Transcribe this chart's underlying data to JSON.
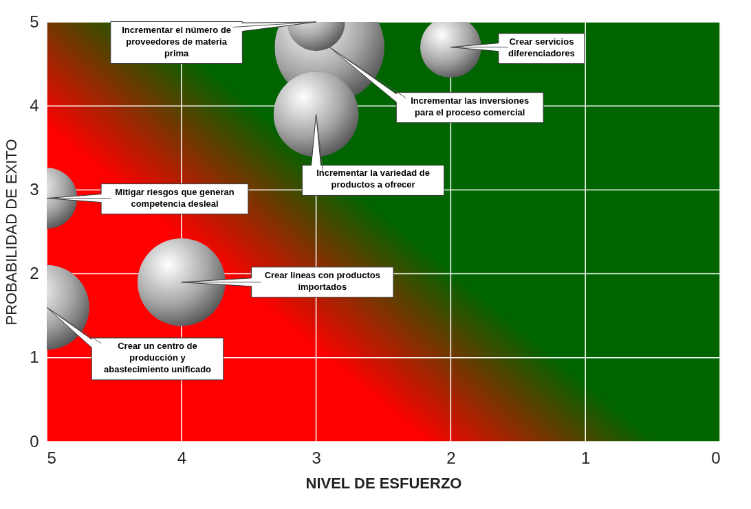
{
  "chart_data": {
    "type": "bubble",
    "xlabel": "NIVEL DE ESFUERZO",
    "ylabel": "PROBABILIDAD DE EXITO",
    "x": [
      2.9,
      3,
      2,
      3,
      5,
      4,
      5
    ],
    "values": [
      4.7,
      5,
      4.7,
      3.9,
      2.9,
      1.9,
      1.6
    ],
    "sizes": [
      1,
      0.28,
      0.31,
      0.6,
      0.31,
      0.64,
      0.6
    ],
    "color": "#a6a6a6",
    "xlim": [
      5,
      0
    ],
    "ylim": [
      0,
      5
    ],
    "xticks": [
      5,
      4,
      3,
      2,
      1,
      0
    ],
    "yticks": [
      0,
      1,
      2,
      3,
      4,
      5
    ],
    "grid": true,
    "legend": false,
    "annotations": [
      {
        "text": "Incrementar las inversiones\npara el proceso comercial",
        "x": 2.9,
        "y": 4.7
      },
      {
        "text": "Incrementar el número de\nproveedores de materia\nprima",
        "x": 3,
        "y": 5
      },
      {
        "text": "Crear servicios\ndiferenciadores",
        "x": 2,
        "y": 4.7
      },
      {
        "text": "Incrementar la variedad de\nproductos a ofrecer",
        "x": 3,
        "y": 3.9
      },
      {
        "text": "Mitigar riesgos que generan\ncompetencia desleal",
        "x": 5,
        "y": 2.9
      },
      {
        "text": "Crear lineas con productos\nimportados",
        "x": 4,
        "y": 1.9
      },
      {
        "text": "Crear un centro de\nproducción y\nabastecimiento unificado",
        "x": 5,
        "y": 1.6
      }
    ]
  }
}
